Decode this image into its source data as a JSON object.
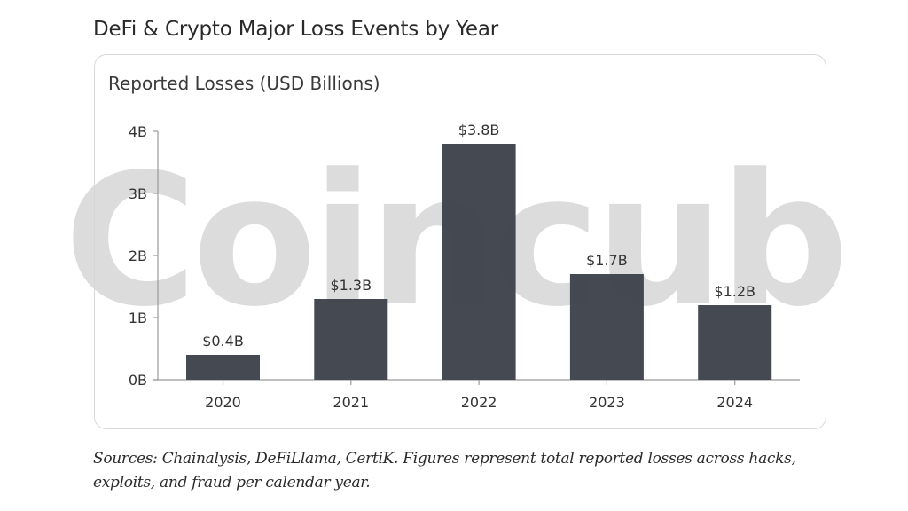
{
  "title": "DeFi & Crypto Major Loss Events by Year",
  "watermark": "Coincub",
  "footnote": "Sources: Chainalysis, DeFiLlama, CertiK. Figures represent total reported losses across hacks, exploits, and fraud per calendar year.",
  "colors": {
    "bar": "#3f434c",
    "axis": "#9a9a9a",
    "text": "#333333"
  },
  "chart_data": {
    "type": "bar",
    "title": "Reported Losses (USD Billions)",
    "xlabel": "",
    "ylabel": "",
    "categories": [
      "2020",
      "2021",
      "2022",
      "2023",
      "2024"
    ],
    "values": [
      0.4,
      1.3,
      3.8,
      1.7,
      1.2
    ],
    "data_labels": [
      "$0.4B",
      "$1.3B",
      "$3.8B",
      "$1.7B",
      "$1.2B"
    ],
    "ylim": [
      0,
      4
    ],
    "yticks": [
      0,
      1,
      2,
      3,
      4
    ],
    "ytick_labels": [
      "0B",
      "1B",
      "2B",
      "3B",
      "4B"
    ],
    "grid": false,
    "legend": "none"
  }
}
